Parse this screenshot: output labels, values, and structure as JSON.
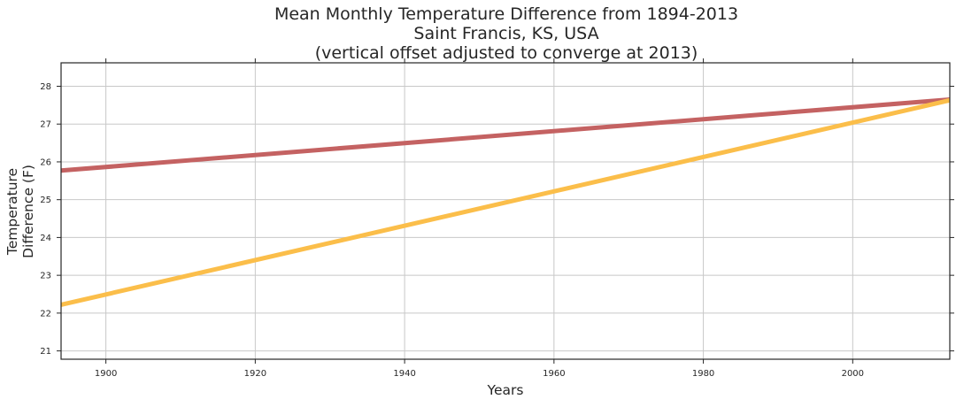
{
  "chart_data": {
    "type": "line",
    "title": "Mean Monthly Temperature Difference from 1894-2013",
    "subtitle": "Saint Francis, KS, USA",
    "subtitle2": "(vertical offset adjusted to converge at 2013)",
    "xlabel": "Years",
    "ylabel_line1": "Temperature",
    "ylabel_line2": "Difference (F)",
    "xlim": [
      1894,
      2013
    ],
    "ylim": [
      20.78,
      28.62
    ],
    "x_ticks": [
      1900,
      1920,
      1940,
      1960,
      1980,
      2000
    ],
    "y_ticks": [
      21,
      22,
      23,
      24,
      25,
      26,
      27,
      28
    ],
    "grid": true,
    "series": [
      {
        "color": "#c46262",
        "x": [
          1894,
          2013
        ],
        "y": [
          25.77,
          27.65
        ]
      },
      {
        "color": "#fbbe4a",
        "x": [
          1894,
          2013
        ],
        "y": [
          22.22,
          27.63
        ]
      }
    ]
  }
}
